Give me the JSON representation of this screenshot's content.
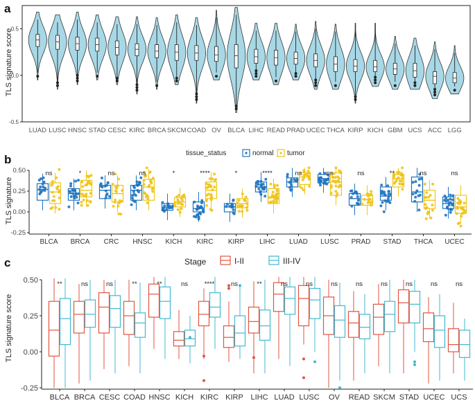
{
  "chart_data": [
    {
      "panel": "a",
      "type": "violin",
      "title": "",
      "ylabel": "TLS signature score",
      "ylim": [
        -0.5,
        0.75
      ],
      "yticks": [
        -0.5,
        0.0,
        0.5
      ],
      "ytick_labels": [
        "-0.5",
        "0.0",
        "0.5"
      ],
      "fill_color": "#a8d8e6",
      "categories": [
        "LUAD",
        "LUSC",
        "HNSC",
        "STAD",
        "CESC",
        "KIRC",
        "BRCA",
        "SKCM",
        "COAD",
        "OV",
        "BLCA",
        "LIHC",
        "READ",
        "PRAD",
        "UCEC",
        "THCA",
        "KIRP",
        "KICH",
        "GBM",
        "UCS",
        "ACC",
        "LGG"
      ],
      "medians": [
        0.38,
        0.36,
        0.34,
        0.33,
        0.3,
        0.28,
        0.26,
        0.25,
        0.24,
        0.22,
        0.21,
        0.2,
        0.19,
        0.18,
        0.16,
        0.12,
        0.1,
        0.09,
        0.07,
        0.05,
        -0.01,
        -0.03
      ],
      "q1": [
        0.31,
        0.28,
        0.27,
        0.26,
        0.22,
        0.21,
        0.19,
        0.16,
        0.16,
        0.15,
        0.08,
        0.13,
        0.11,
        0.12,
        0.09,
        0.04,
        0.04,
        0.04,
        0.01,
        -0.02,
        -0.09,
        -0.08
      ],
      "q3": [
        0.44,
        0.43,
        0.41,
        0.4,
        0.37,
        0.34,
        0.33,
        0.33,
        0.32,
        0.31,
        0.33,
        0.28,
        0.27,
        0.25,
        0.23,
        0.2,
        0.17,
        0.16,
        0.13,
        0.13,
        0.04,
        0.03
      ],
      "vmin": [
        -0.05,
        -0.15,
        -0.1,
        -0.05,
        -0.1,
        -0.2,
        -0.15,
        -0.1,
        -0.3,
        -0.05,
        -0.4,
        -0.05,
        -0.1,
        -0.05,
        -0.15,
        -0.15,
        -0.3,
        -0.12,
        -0.15,
        -0.15,
        -0.25,
        -0.2
      ],
      "vmax": [
        0.68,
        0.65,
        0.68,
        0.65,
        0.63,
        0.63,
        0.62,
        0.65,
        0.62,
        0.7,
        0.73,
        0.56,
        0.56,
        0.55,
        0.58,
        0.55,
        0.56,
        0.56,
        0.42,
        0.4,
        0.36,
        0.32
      ]
    },
    {
      "panel": "b",
      "type": "box_jitter",
      "ylabel": "TLS signature",
      "ylim": [
        -0.25,
        0.5
      ],
      "yticks": [
        -0.25,
        0.0,
        0.25,
        0.5
      ],
      "ytick_labels": [
        "-0.25",
        "0.00",
        "0.25",
        "0.50"
      ],
      "legend_title": "tissue_status",
      "series": [
        {
          "name": "normal",
          "color": "#1f74bf",
          "q1": [
            0.14,
            0.14,
            0.16,
            0.14,
            0.02,
            0.0,
            0.0,
            0.24,
            0.3,
            0.35,
            0.08,
            0.14,
            0.12,
            0.04
          ],
          "median": [
            0.27,
            0.22,
            0.26,
            0.26,
            0.05,
            0.04,
            0.06,
            0.3,
            0.36,
            0.4,
            0.16,
            0.19,
            0.24,
            0.1
          ],
          "q3": [
            0.34,
            0.28,
            0.32,
            0.32,
            0.1,
            0.12,
            0.1,
            0.36,
            0.41,
            0.45,
            0.22,
            0.3,
            0.42,
            0.18
          ]
        },
        {
          "name": "tumor",
          "color": "#f0c419",
          "q1": [
            0.1,
            0.18,
            0.12,
            0.14,
            0.06,
            0.16,
            0.05,
            0.1,
            0.33,
            0.2,
            0.08,
            0.3,
            0.04,
            -0.02
          ],
          "median": [
            0.24,
            0.26,
            0.22,
            0.3,
            0.12,
            0.26,
            0.1,
            0.17,
            0.42,
            0.36,
            0.15,
            0.4,
            0.14,
            0.06
          ],
          "q3": [
            0.35,
            0.38,
            0.32,
            0.39,
            0.17,
            0.36,
            0.16,
            0.28,
            0.47,
            0.47,
            0.2,
            0.45,
            0.26,
            0.2
          ]
        }
      ],
      "categories": [
        "BLCA",
        "BRCA",
        "CRC",
        "HNSC",
        "KICH",
        "KIRC",
        "KIRP",
        "LIHC",
        "LUAD",
        "LUSC",
        "PRAD",
        "STAD",
        "THCA",
        "UCEC"
      ],
      "significance": [
        "ns",
        "*",
        "ns",
        "ns",
        "*",
        "****",
        "*",
        "****",
        "ns",
        "ns",
        "ns",
        "**",
        "ns",
        "ns"
      ]
    },
    {
      "panel": "c",
      "type": "box",
      "ylabel": "TLS signature score",
      "ylim": [
        -0.25,
        0.5
      ],
      "yticks": [
        -0.25,
        0.0,
        0.25,
        0.5
      ],
      "ytick_labels": [
        "-0.25",
        "0.00",
        "0.25",
        "0.50"
      ],
      "legend_title": "Stage",
      "series": [
        {
          "name": "I-II",
          "color": "#e2533f",
          "q1": [
            -0.03,
            0.13,
            0.13,
            0.12,
            0.24,
            0.04,
            0.18,
            0.03,
            0.13,
            0.28,
            0.18,
            0.12,
            0.1,
            0.12,
            0.2,
            0.07,
            0.0
          ],
          "median": [
            0.15,
            0.26,
            0.31,
            0.25,
            0.4,
            0.08,
            0.26,
            0.1,
            0.21,
            0.4,
            0.37,
            0.25,
            0.2,
            0.24,
            0.34,
            0.16,
            0.05
          ],
          "q3": [
            0.35,
            0.35,
            0.41,
            0.35,
            0.47,
            0.14,
            0.35,
            0.18,
            0.31,
            0.48,
            0.46,
            0.38,
            0.28,
            0.33,
            0.43,
            0.27,
            0.16
          ],
          "wmin": [
            -0.25,
            -0.22,
            -0.12,
            -0.1,
            0.02,
            -0.05,
            -0.05,
            -0.07,
            -0.15,
            -0.05,
            0.05,
            -0.25,
            -0.2,
            -0.1,
            -0.15,
            -0.22,
            -0.15
          ],
          "wmax": [
            0.51,
            0.47,
            0.5,
            0.5,
            0.52,
            0.29,
            0.44,
            0.35,
            0.49,
            0.52,
            0.52,
            0.5,
            0.42,
            0.47,
            0.5,
            0.38,
            0.34
          ]
        },
        {
          "name": "III-IV",
          "color": "#40b8d0",
          "q1": [
            0.05,
            0.17,
            0.17,
            0.1,
            0.23,
            0.04,
            0.24,
            0.04,
            0.08,
            0.26,
            0.23,
            0.1,
            0.09,
            0.14,
            0.2,
            0.03,
            -0.04
          ],
          "median": [
            0.23,
            0.26,
            0.3,
            0.2,
            0.35,
            0.09,
            0.31,
            0.13,
            0.18,
            0.37,
            0.36,
            0.22,
            0.17,
            0.26,
            0.33,
            0.15,
            0.05
          ],
          "q3": [
            0.37,
            0.36,
            0.39,
            0.27,
            0.45,
            0.15,
            0.41,
            0.25,
            0.29,
            0.45,
            0.44,
            0.32,
            0.26,
            0.35,
            0.42,
            0.25,
            0.15
          ],
          "wmin": [
            -0.25,
            -0.2,
            -0.15,
            -0.15,
            -0.05,
            -0.08,
            0.02,
            -0.05,
            -0.15,
            -0.1,
            0.0,
            -0.2,
            -0.15,
            -0.15,
            0.0,
            -0.2,
            -0.2
          ],
          "wmax": [
            0.51,
            0.5,
            0.5,
            0.48,
            0.52,
            0.25,
            0.52,
            0.46,
            0.5,
            0.52,
            0.52,
            0.48,
            0.4,
            0.5,
            0.5,
            0.4,
            0.23
          ]
        }
      ],
      "categories": [
        "BLCA",
        "BRCA",
        "CESC",
        "COAD",
        "HNSC",
        "KICH",
        "KIRC",
        "KIRP",
        "LIHC",
        "LUAD",
        "LUSC",
        "OV",
        "READ",
        "SKCM",
        "STAD",
        "UCEC",
        "UCS"
      ],
      "significance": [
        "**",
        "ns",
        "ns",
        "**",
        "**",
        "ns",
        "****",
        "ns",
        "**",
        "ns",
        "ns",
        "ns",
        "ns",
        "ns",
        "ns",
        "ns",
        "ns"
      ]
    }
  ]
}
